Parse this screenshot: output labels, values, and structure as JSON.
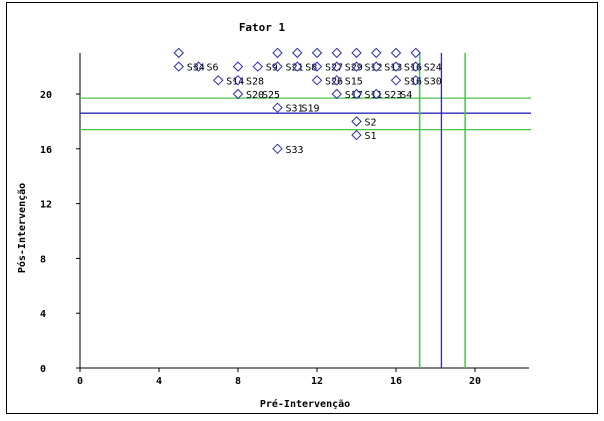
{
  "chart_data": {
    "type": "scatter",
    "title": "Fator 1",
    "xlabel": "Pré-Intervenção",
    "ylabel": "Pós-Intervenção",
    "xlim": [
      0,
      23
    ],
    "ylim": [
      0,
      23
    ],
    "xticks": [
      "0",
      "4",
      "8",
      "12",
      "16",
      "20"
    ],
    "yticks": [
      "0",
      "4",
      "8",
      "12",
      "16",
      "20"
    ],
    "grid": false,
    "points": [
      {
        "x": 5,
        "y": 23,
        "label": ""
      },
      {
        "x": 5,
        "y": 22,
        "label": "S34"
      },
      {
        "x": 6,
        "y": 22,
        "label": "S6"
      },
      {
        "x": 7,
        "y": 21,
        "label": "S14"
      },
      {
        "x": 8,
        "y": 22,
        "label": ""
      },
      {
        "x": 8,
        "y": 21,
        "label": "S28"
      },
      {
        "x": 9,
        "y": 22,
        "label": "S9"
      },
      {
        "x": 8,
        "y": 20,
        "label": "S20"
      },
      {
        "x": 8,
        "y": 20,
        "label": "S25"
      },
      {
        "x": 10,
        "y": 19,
        "label": "S31"
      },
      {
        "x": 10,
        "y": 23,
        "label": ""
      },
      {
        "x": 10,
        "y": 22,
        "label": "S21"
      },
      {
        "x": 11,
        "y": 23,
        "label": ""
      },
      {
        "x": 11,
        "y": 22,
        "label": "S8"
      },
      {
        "x": 12,
        "y": 23,
        "label": ""
      },
      {
        "x": 12,
        "y": 22,
        "label": "S27"
      },
      {
        "x": 12,
        "y": 21,
        "label": "S26"
      },
      {
        "x": 13,
        "y": 23,
        "label": ""
      },
      {
        "x": 13,
        "y": 22,
        "label": "S29"
      },
      {
        "x": 13,
        "y": 21,
        "label": "S15"
      },
      {
        "x": 13,
        "y": 20,
        "label": "S17"
      },
      {
        "x": 14,
        "y": 23,
        "label": ""
      },
      {
        "x": 14,
        "y": 22,
        "label": "S12"
      },
      {
        "x": 14,
        "y": 20,
        "label": "S11"
      },
      {
        "x": 15,
        "y": 23,
        "label": ""
      },
      {
        "x": 15,
        "y": 22,
        "label": "S13"
      },
      {
        "x": 15,
        "y": 20,
        "label": "S23"
      },
      {
        "x": 16,
        "y": 23,
        "label": ""
      },
      {
        "x": 16,
        "y": 22,
        "label": "S16"
      },
      {
        "x": 16,
        "y": 21,
        "label": "S16"
      },
      {
        "x": 17,
        "y": 23,
        "label": ""
      },
      {
        "x": 17,
        "y": 22,
        "label": "S24"
      },
      {
        "x": 17,
        "y": 21,
        "label": "S30"
      },
      {
        "x": 15,
        "y": 20,
        "label": "S4"
      },
      {
        "x": 10,
        "y": 19,
        "label": "S19"
      },
      {
        "x": 14,
        "y": 18,
        "label": "S2"
      },
      {
        "x": 14,
        "y": 17,
        "label": "S1"
      },
      {
        "x": 10,
        "y": 16,
        "label": "S33"
      }
    ],
    "hlines_blue": [
      18.6
    ],
    "hlines_green": [
      19.7,
      17.4
    ],
    "vlines_blue": [
      18.3
    ],
    "vlines_green": [
      17.2,
      19.5
    ],
    "colors": {
      "marker": "#2b2bb8",
      "blue_line": "#2b2bb8",
      "green_line": "#4cc24c"
    }
  }
}
